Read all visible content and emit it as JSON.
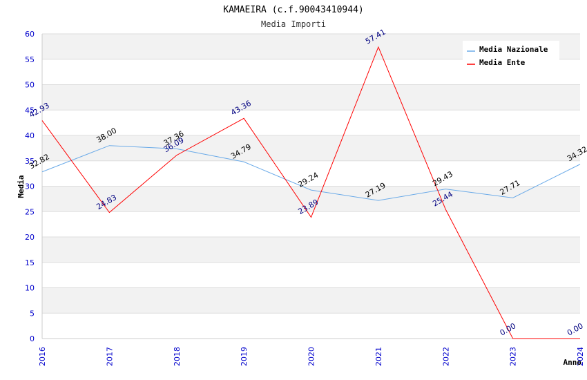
{
  "chart_data": {
    "type": "line",
    "title": "KAMAEIRA (c.f.90043410944)",
    "subtitle": "Media Importi",
    "xlabel": "Anno",
    "ylabel": "Media",
    "ylim": [
      0,
      60
    ],
    "y_ticks": [
      "0",
      "5",
      "10",
      "15",
      "20",
      "25",
      "30",
      "35",
      "40",
      "45",
      "50",
      "55",
      "60"
    ],
    "categories": [
      "2016",
      "2017",
      "2018",
      "2019",
      "2020",
      "2021",
      "2022",
      "2023",
      "2024"
    ],
    "grid": true,
    "legend_position": "top-right",
    "series": [
      {
        "name": "Media Nazionale",
        "color": "#6aaae8",
        "label_color": "#000000",
        "values": [
          32.82,
          38.0,
          37.36,
          34.79,
          29.24,
          27.19,
          29.43,
          27.71,
          34.32
        ],
        "labels": [
          "32.82",
          "38.00",
          "37.36",
          "34.79",
          "29.24",
          "27.19",
          "29.43",
          "27.71",
          "34.32"
        ]
      },
      {
        "name": "Media Ente",
        "color": "#ff0000",
        "label_color": "#000080",
        "values": [
          42.93,
          24.83,
          36.09,
          43.36,
          23.89,
          57.41,
          25.44,
          0.0,
          0.0
        ],
        "labels": [
          "42.93",
          "24.83",
          "36.09",
          "43.36",
          "23.89",
          "57.41",
          "25.44",
          "0.00",
          "0.00"
        ]
      }
    ]
  }
}
